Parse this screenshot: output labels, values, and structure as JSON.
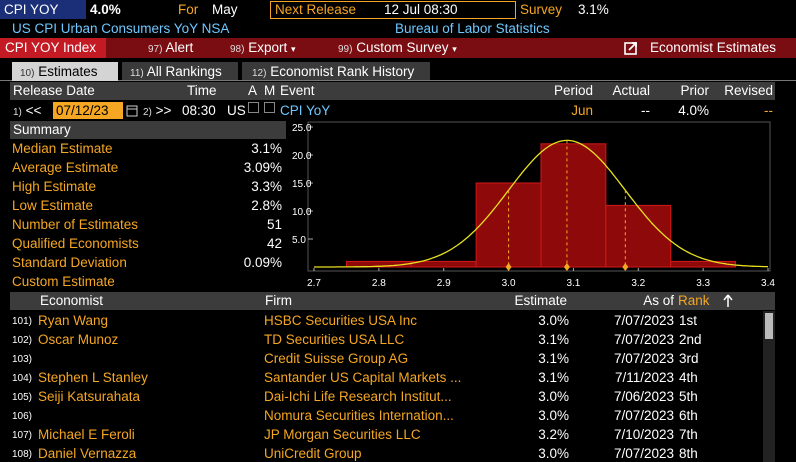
{
  "header": {
    "ticker": "CPI YOY",
    "value": "4.0%",
    "for_label": "For",
    "for_value": "May",
    "next_release_label": "Next Release",
    "next_release_value": "12 Jul 08:30",
    "survey_label": "Survey",
    "survey_value": "3.1%",
    "name": "US CPI Urban Consumers YoY NSA",
    "source": "Bureau of Labor Statistics"
  },
  "menu": {
    "index": "CPI YOY Index",
    "items": [
      {
        "key": "97)",
        "label": "Alert"
      },
      {
        "key": "98)",
        "label": "Export"
      },
      {
        "key": "99)",
        "label": "Custom Survey"
      }
    ],
    "function": "Economist Estimates"
  },
  "tabs": [
    {
      "key": "10)",
      "label": "Estimates"
    },
    {
      "key": "11)",
      "label": "All Rankings"
    },
    {
      "key": "12)",
      "label": "Economist Rank History"
    }
  ],
  "release": {
    "columns": [
      "Release Date",
      "Time",
      "A",
      "M",
      "Event",
      "Period",
      "Actual",
      "Prior",
      "Revised"
    ],
    "prev_key": "1)",
    "prev": "<<",
    "date": "07/12/23",
    "next_key": "2)",
    "next": ">>",
    "time": "08:30",
    "country": "US",
    "event": "CPI YoY",
    "period": "Jun",
    "actual": "--",
    "prior": "4.0%",
    "revised": "--"
  },
  "summary": {
    "title": "Summary",
    "rows": [
      {
        "label": "Median Estimate",
        "value": "3.1%"
      },
      {
        "label": "Average Estimate",
        "value": "3.09%"
      },
      {
        "label": "High Estimate",
        "value": "3.3%"
      },
      {
        "label": "Low Estimate",
        "value": "2.8%"
      },
      {
        "label": "Number of Estimates",
        "value": "51"
      },
      {
        "label": "Qualified Economists",
        "value": "42"
      },
      {
        "label": "Standard Deviation",
        "value": "0.09%"
      },
      {
        "label": "Custom Estimate"
      }
    ]
  },
  "chart_data": {
    "type": "histogram",
    "bins": [
      2.75,
      2.85,
      2.95,
      3.05,
      3.15,
      3.25,
      3.35
    ],
    "counts": [
      1,
      1,
      15,
      22,
      11,
      1
    ],
    "color": "#8e0a0a",
    "edge_color": "#d01818",
    "curve_color": "#e8e020",
    "normal_fit": {
      "mean": 3.09,
      "sd": 0.09
    },
    "xlim": [
      2.7,
      3.4
    ],
    "xticks": [
      2.7,
      2.8,
      2.9,
      {
        "value": 3,
        "label": "3.0"
      },
      3.1,
      3.2,
      3.3,
      3.4
    ],
    "ylim": [
      0,
      25
    ],
    "yticks": [
      {
        "value": 5,
        "label": "5.0"
      },
      {
        "value": 10,
        "label": "10.0"
      },
      {
        "value": 15,
        "label": "15.0"
      },
      {
        "value": 20,
        "label": "20.0"
      },
      {
        "value": 25,
        "label": "25.0"
      }
    ]
  },
  "economists": {
    "columns": [
      "Economist",
      "Firm",
      "Estimate",
      "As of",
      "Rank"
    ],
    "rows": [
      {
        "index": "101)",
        "name": "Ryan Wang",
        "firm": "HSBC Securities USA Inc",
        "estimate": "3.0%",
        "as_of": "7/07/2023",
        "rank": "1st"
      },
      {
        "index": "102)",
        "name": "Oscar Munoz",
        "firm": "TD Securities USA LLC",
        "estimate": "3.1%",
        "as_of": "7/07/2023",
        "rank": "2nd"
      },
      {
        "index": "103)",
        "firm": "Credit Suisse Group AG",
        "estimate": "3.1%",
        "as_of": "7/07/2023",
        "rank": "3rd"
      },
      {
        "index": "104)",
        "name": "Stephen L Stanley",
        "firm": "Santander US Capital Markets ...",
        "estimate": "3.1%",
        "as_of": "7/11/2023",
        "rank": "4th"
      },
      {
        "index": "105)",
        "name": "Seiji Katsurahata",
        "firm": "Dai-Ichi Life Research Institut...",
        "estimate": "3.0%",
        "as_of": "7/06/2023",
        "rank": "5th"
      },
      {
        "index": "106)",
        "firm": "Nomura Securities Internation...",
        "estimate": "3.0%",
        "as_of": "7/07/2023",
        "rank": "6th"
      },
      {
        "index": "107)",
        "name": "Michael E Feroli",
        "firm": "JP Morgan Securities LLC",
        "estimate": "3.2%",
        "as_of": "7/10/2023",
        "rank": "7th"
      },
      {
        "index": "108)",
        "name": "Daniel Vernazza",
        "firm": "UniCredit Group",
        "estimate": "3.0%",
        "as_of": "7/07/2023",
        "rank": "8th"
      }
    ]
  }
}
